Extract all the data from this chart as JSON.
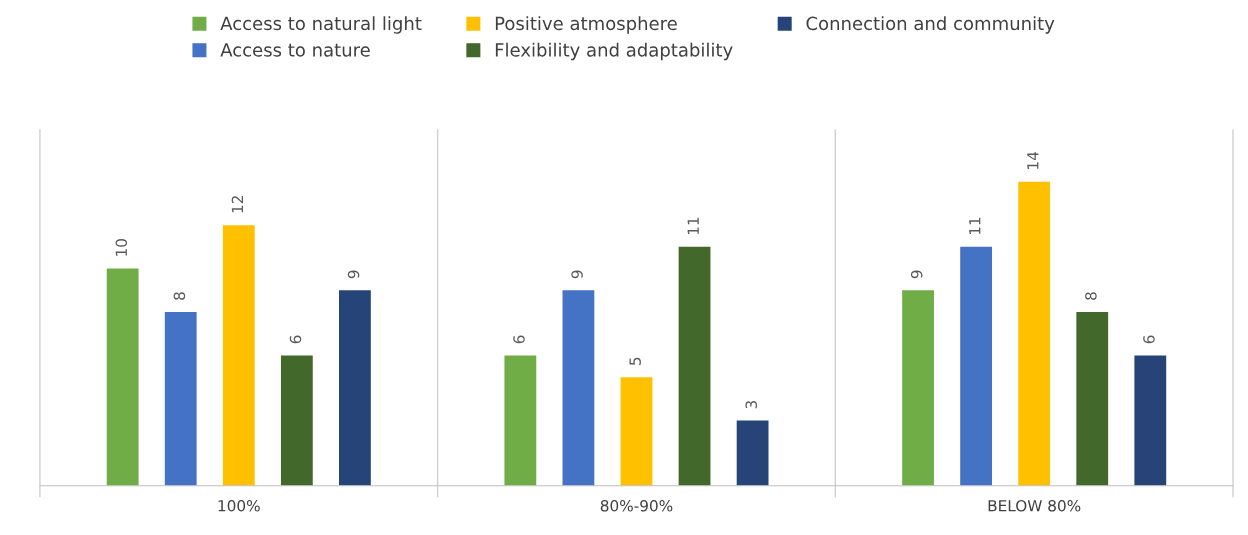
{
  "chart_data": {
    "type": "bar",
    "categories": [
      "100%",
      "80%-90%",
      "BELOW 80%"
    ],
    "series": [
      {
        "name": "Access to natural light",
        "color": "#70ad47",
        "values": [
          10,
          6,
          9
        ]
      },
      {
        "name": "Access to nature",
        "color": "#4472c4",
        "values": [
          8,
          9,
          11
        ]
      },
      {
        "name": "Positive atmosphere",
        "color": "#ffc000",
        "values": [
          12,
          5,
          14
        ]
      },
      {
        "name": "Flexibility and adaptability",
        "color": "#43682b",
        "values": [
          6,
          11,
          8
        ]
      },
      {
        "name": "Connection and community",
        "color": "#264478",
        "values": [
          9,
          3,
          6
        ]
      }
    ],
    "relative": false,
    "data_labels": true,
    "legend": "top",
    "grid": false
  }
}
